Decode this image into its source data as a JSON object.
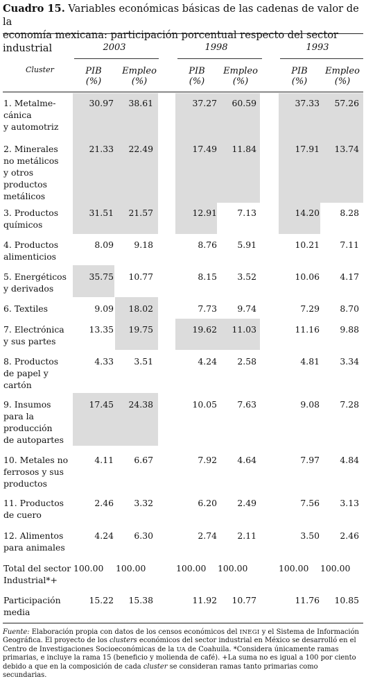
{
  "title": {
    "label": "Cuadro 15.",
    "text_line1": "Variables económicas básicas de las cadenas de valor de la",
    "text_line2": "economía mexicana: participación porcentual respecto del sector industrial"
  },
  "header": {
    "years": [
      "2003",
      "1998",
      "1993"
    ],
    "cluster": "Cluster",
    "pib_line1": "PIB",
    "pib_line2": "(%)",
    "empleo_line1": "Empleo",
    "empleo_line2": "(%)"
  },
  "rows": [
    {
      "label": "1. Metalme-\ncánica\ny automotriz",
      "v": [
        "30.97",
        "38.61",
        "37.27",
        "60.59",
        "37.33",
        "57.26"
      ]
    },
    {
      "label": "2. Minerales\nno metálicos\ny otros\nproductos\nmetálicos",
      "v": [
        "21.33",
        "22.49",
        "17.49",
        "11.84",
        "17.91",
        "13.74"
      ]
    },
    {
      "label": "3. Productos\nquímicos",
      "v": [
        "31.51",
        "21.57",
        "12.91",
        "7.13",
        "14.20",
        "8.28"
      ]
    },
    {
      "label": "4. Productos\nalimenticios",
      "v": [
        "8.09",
        "9.18",
        "8.76",
        "5.91",
        "10.21",
        "7.11"
      ]
    },
    {
      "label": "5. Energéticos\ny derivados",
      "v": [
        "35.75",
        "10.77",
        "8.15",
        "3.52",
        "10.06",
        "4.17"
      ]
    },
    {
      "label": "6. Textiles",
      "v": [
        "9.09",
        "18.02",
        "7.73",
        "9.74",
        "7.29",
        "8.70"
      ]
    },
    {
      "label": "7. Electrónica\ny sus partes",
      "v": [
        "13.35",
        "19.75",
        "19.62",
        "11.03",
        "11.16",
        "9.88"
      ]
    },
    {
      "label": "8. Productos\nde papel y\ncartón",
      "v": [
        "4.33",
        "3.51",
        "4.24",
        "2.58",
        "4.81",
        "3.34"
      ]
    },
    {
      "label": "9. Insumos\npara la\nproducción\nde autopartes",
      "v": [
        "17.45",
        "24.38",
        "10.05",
        "7.63",
        "9.08",
        "7.28"
      ]
    },
    {
      "label": "10. Metales no\nferrosos y sus\nproductos",
      "v": [
        "4.11",
        "6.67",
        "7.92",
        "4.64",
        "7.97",
        "4.84"
      ]
    },
    {
      "label": "11. Productos\nde cuero",
      "v": [
        "2.46",
        "3.32",
        "6.20",
        "2.49",
        "7.56",
        "3.13"
      ]
    },
    {
      "label": "12. Alimentos\npara animales",
      "v": [
        "4.24",
        "6.30",
        "2.74",
        "2.11",
        "3.50",
        "2.46"
      ]
    }
  ],
  "total": {
    "label": "Total del sector\nIndustrial*+",
    "v": [
      "100.00",
      "100.00",
      "100.00",
      "100.00",
      "100.00",
      "100.00"
    ]
  },
  "media": {
    "label": "Participación\nmedia",
    "v": [
      "15.22",
      "15.38",
      "11.92",
      "10.77",
      "11.76",
      "10.85"
    ]
  },
  "footnote": {
    "fuente_label": "Fuente:",
    "text1": " Elaboración propia con datos de los censos económicos del ",
    "inegi": "INEGI",
    "text2": " y el Sistema de Información Geográfica. El proyecto de los ",
    "clusters": "clusters",
    "text3": " económicos del sector industrial en México se desarrolló en el Centro de Investigaciones Socioeconómicas de la ",
    "ua": "UA",
    "text4": " de Coahuila. *Considera únicamente ramas primarias, e incluye la rama 15 (beneficio y molienda de café). +La suma no es igual a 100 por ciento debido a que en la composición de cada ",
    "cluster": "cluster",
    "text5": " se consideran ramas tanto primarias como secundarias."
  },
  "colors": {
    "shade": "#dcdcdc",
    "rule": "#222222"
  }
}
